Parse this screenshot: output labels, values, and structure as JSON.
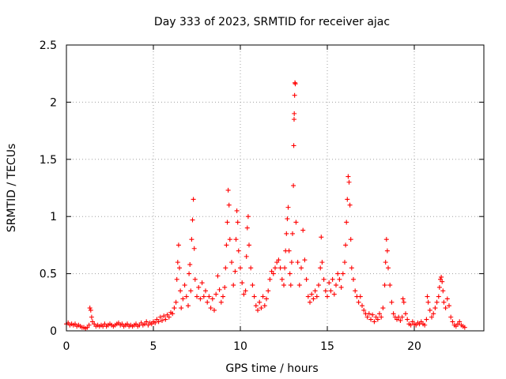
{
  "chart_data": {
    "type": "scatter",
    "title": "Day 333 of 2023, SRMTID for receiver ajac",
    "xlabel": "GPS time / hours",
    "ylabel": "SRMTID / TECUs",
    "xlim": [
      0,
      24
    ],
    "ylim": [
      0,
      2.5
    ],
    "xticks": [
      0,
      5,
      10,
      15,
      20
    ],
    "xtick_labels": [
      "0",
      "5",
      "10",
      "15",
      "20"
    ],
    "yticks": [
      0,
      0.5,
      1,
      1.5,
      2,
      2.5
    ],
    "ytick_labels": [
      "0",
      "0.5",
      "1",
      "1.5",
      "2",
      "2.5"
    ],
    "grid": true,
    "marker": "+",
    "color": "#ff0000",
    "series": [
      {
        "name": "SRMTID",
        "points": [
          [
            0.0,
            0.06
          ],
          [
            0.1,
            0.07
          ],
          [
            0.2,
            0.05
          ],
          [
            0.3,
            0.06
          ],
          [
            0.4,
            0.05
          ],
          [
            0.5,
            0.06
          ],
          [
            0.6,
            0.04
          ],
          [
            0.7,
            0.05
          ],
          [
            0.8,
            0.04
          ],
          [
            0.9,
            0.03
          ],
          [
            1.0,
            0.03
          ],
          [
            1.1,
            0.02
          ],
          [
            1.2,
            0.03
          ],
          [
            1.3,
            0.05
          ],
          [
            1.35,
            0.2
          ],
          [
            1.4,
            0.18
          ],
          [
            1.45,
            0.12
          ],
          [
            1.5,
            0.08
          ],
          [
            1.6,
            0.06
          ],
          [
            1.7,
            0.04
          ],
          [
            1.8,
            0.05
          ],
          [
            1.9,
            0.04
          ],
          [
            2.0,
            0.05
          ],
          [
            2.1,
            0.04
          ],
          [
            2.2,
            0.06
          ],
          [
            2.3,
            0.04
          ],
          [
            2.4,
            0.05
          ],
          [
            2.5,
            0.06
          ],
          [
            2.6,
            0.05
          ],
          [
            2.7,
            0.04
          ],
          [
            2.8,
            0.05
          ],
          [
            2.9,
            0.06
          ],
          [
            3.0,
            0.07
          ],
          [
            3.1,
            0.05
          ],
          [
            3.2,
            0.06
          ],
          [
            3.3,
            0.04
          ],
          [
            3.4,
            0.05
          ],
          [
            3.5,
            0.06
          ],
          [
            3.6,
            0.04
          ],
          [
            3.7,
            0.05
          ],
          [
            3.8,
            0.04
          ],
          [
            3.9,
            0.05
          ],
          [
            4.0,
            0.06
          ],
          [
            4.1,
            0.04
          ],
          [
            4.2,
            0.05
          ],
          [
            4.3,
            0.07
          ],
          [
            4.4,
            0.05
          ],
          [
            4.5,
            0.06
          ],
          [
            4.6,
            0.08
          ],
          [
            4.7,
            0.05
          ],
          [
            4.8,
            0.07
          ],
          [
            4.9,
            0.06
          ],
          [
            5.0,
            0.08
          ],
          [
            5.1,
            0.07
          ],
          [
            5.2,
            0.1
          ],
          [
            5.3,
            0.08
          ],
          [
            5.4,
            0.12
          ],
          [
            5.5,
            0.09
          ],
          [
            5.6,
            0.13
          ],
          [
            5.7,
            0.1
          ],
          [
            5.8,
            0.14
          ],
          [
            5.9,
            0.12
          ],
          [
            6.0,
            0.16
          ],
          [
            6.1,
            0.15
          ],
          [
            6.2,
            0.2
          ],
          [
            6.3,
            0.25
          ],
          [
            6.35,
            0.45
          ],
          [
            6.4,
            0.6
          ],
          [
            6.45,
            0.75
          ],
          [
            6.5,
            0.55
          ],
          [
            6.55,
            0.35
          ],
          [
            6.6,
            0.2
          ],
          [
            6.7,
            0.28
          ],
          [
            6.8,
            0.4
          ],
          [
            6.9,
            0.3
          ],
          [
            7.0,
            0.22
          ],
          [
            7.05,
            0.5
          ],
          [
            7.1,
            0.58
          ],
          [
            7.15,
            0.35
          ],
          [
            7.2,
            0.8
          ],
          [
            7.25,
            0.97
          ],
          [
            7.3,
            1.15
          ],
          [
            7.35,
            0.72
          ],
          [
            7.4,
            0.45
          ],
          [
            7.5,
            0.3
          ],
          [
            7.6,
            0.38
          ],
          [
            7.7,
            0.28
          ],
          [
            7.8,
            0.42
          ],
          [
            7.9,
            0.3
          ],
          [
            8.0,
            0.35
          ],
          [
            8.1,
            0.25
          ],
          [
            8.2,
            0.3
          ],
          [
            8.3,
            0.2
          ],
          [
            8.4,
            0.28
          ],
          [
            8.5,
            0.18
          ],
          [
            8.6,
            0.32
          ],
          [
            8.7,
            0.48
          ],
          [
            8.8,
            0.36
          ],
          [
            8.9,
            0.25
          ],
          [
            9.0,
            0.3
          ],
          [
            9.1,
            0.38
          ],
          [
            9.15,
            0.55
          ],
          [
            9.2,
            0.75
          ],
          [
            9.25,
            0.95
          ],
          [
            9.3,
            1.23
          ],
          [
            9.35,
            1.1
          ],
          [
            9.4,
            0.8
          ],
          [
            9.5,
            0.6
          ],
          [
            9.6,
            0.4
          ],
          [
            9.7,
            0.52
          ],
          [
            9.75,
            0.8
          ],
          [
            9.8,
            1.05
          ],
          [
            9.85,
            0.95
          ],
          [
            9.9,
            0.7
          ],
          [
            10.0,
            0.55
          ],
          [
            10.1,
            0.42
          ],
          [
            10.2,
            0.32
          ],
          [
            10.3,
            0.35
          ],
          [
            10.35,
            0.65
          ],
          [
            10.4,
            0.9
          ],
          [
            10.45,
            1.0
          ],
          [
            10.5,
            0.75
          ],
          [
            10.6,
            0.55
          ],
          [
            10.7,
            0.4
          ],
          [
            10.8,
            0.3
          ],
          [
            10.9,
            0.22
          ],
          [
            11.0,
            0.18
          ],
          [
            11.1,
            0.25
          ],
          [
            11.2,
            0.2
          ],
          [
            11.3,
            0.3
          ],
          [
            11.4,
            0.22
          ],
          [
            11.5,
            0.28
          ],
          [
            11.6,
            0.35
          ],
          [
            11.7,
            0.45
          ],
          [
            11.8,
            0.52
          ],
          [
            11.9,
            0.5
          ],
          [
            12.0,
            0.55
          ],
          [
            12.1,
            0.6
          ],
          [
            12.2,
            0.62
          ],
          [
            12.3,
            0.55
          ],
          [
            12.4,
            0.45
          ],
          [
            12.5,
            0.4
          ],
          [
            12.55,
            0.55
          ],
          [
            12.6,
            0.7
          ],
          [
            12.65,
            0.85
          ],
          [
            12.7,
            0.98
          ],
          [
            12.75,
            1.08
          ],
          [
            12.8,
            0.7
          ],
          [
            12.85,
            0.5
          ],
          [
            12.9,
            0.4
          ],
          [
            12.95,
            0.6
          ],
          [
            13.0,
            0.85
          ],
          [
            13.05,
            1.27
          ],
          [
            13.07,
            1.62
          ],
          [
            13.09,
            1.85
          ],
          [
            13.1,
            1.9
          ],
          [
            13.12,
            2.06
          ],
          [
            13.14,
            2.17
          ],
          [
            13.16,
            2.16
          ],
          [
            13.2,
            0.95
          ],
          [
            13.3,
            0.6
          ],
          [
            13.4,
            0.4
          ],
          [
            13.5,
            0.55
          ],
          [
            13.6,
            0.88
          ],
          [
            13.7,
            0.62
          ],
          [
            13.8,
            0.45
          ],
          [
            13.9,
            0.3
          ],
          [
            14.0,
            0.25
          ],
          [
            14.1,
            0.32
          ],
          [
            14.2,
            0.28
          ],
          [
            14.3,
            0.35
          ],
          [
            14.4,
            0.3
          ],
          [
            14.5,
            0.4
          ],
          [
            14.6,
            0.55
          ],
          [
            14.65,
            0.82
          ],
          [
            14.7,
            0.6
          ],
          [
            14.8,
            0.45
          ],
          [
            14.9,
            0.35
          ],
          [
            15.0,
            0.3
          ],
          [
            15.1,
            0.42
          ],
          [
            15.2,
            0.35
          ],
          [
            15.3,
            0.45
          ],
          [
            15.4,
            0.32
          ],
          [
            15.5,
            0.4
          ],
          [
            15.6,
            0.5
          ],
          [
            15.7,
            0.45
          ],
          [
            15.8,
            0.38
          ],
          [
            15.9,
            0.5
          ],
          [
            16.0,
            0.6
          ],
          [
            16.05,
            0.75
          ],
          [
            16.1,
            0.95
          ],
          [
            16.15,
            1.15
          ],
          [
            16.2,
            1.35
          ],
          [
            16.25,
            1.3
          ],
          [
            16.3,
            1.1
          ],
          [
            16.35,
            0.8
          ],
          [
            16.4,
            0.55
          ],
          [
            16.5,
            0.45
          ],
          [
            16.6,
            0.35
          ],
          [
            16.7,
            0.3
          ],
          [
            16.8,
            0.25
          ],
          [
            16.9,
            0.3
          ],
          [
            17.0,
            0.22
          ],
          [
            17.1,
            0.18
          ],
          [
            17.2,
            0.15
          ],
          [
            17.3,
            0.12
          ],
          [
            17.4,
            0.15
          ],
          [
            17.5,
            0.1
          ],
          [
            17.6,
            0.14
          ],
          [
            17.7,
            0.08
          ],
          [
            17.8,
            0.12
          ],
          [
            17.9,
            0.1
          ],
          [
            18.0,
            0.15
          ],
          [
            18.1,
            0.12
          ],
          [
            18.2,
            0.2
          ],
          [
            18.3,
            0.4
          ],
          [
            18.35,
            0.6
          ],
          [
            18.4,
            0.8
          ],
          [
            18.45,
            0.7
          ],
          [
            18.5,
            0.55
          ],
          [
            18.6,
            0.4
          ],
          [
            18.7,
            0.25
          ],
          [
            18.8,
            0.15
          ],
          [
            18.9,
            0.12
          ],
          [
            19.0,
            0.1
          ],
          [
            19.1,
            0.12
          ],
          [
            19.2,
            0.09
          ],
          [
            19.3,
            0.12
          ],
          [
            19.35,
            0.28
          ],
          [
            19.4,
            0.25
          ],
          [
            19.5,
            0.15
          ],
          [
            19.6,
            0.1
          ],
          [
            19.7,
            0.06
          ],
          [
            19.8,
            0.05
          ],
          [
            19.9,
            0.08
          ],
          [
            20.0,
            0.06
          ],
          [
            20.1,
            0.05
          ],
          [
            20.2,
            0.07
          ],
          [
            20.3,
            0.06
          ],
          [
            20.4,
            0.08
          ],
          [
            20.5,
            0.06
          ],
          [
            20.6,
            0.05
          ],
          [
            20.7,
            0.1
          ],
          [
            20.75,
            0.3
          ],
          [
            20.8,
            0.25
          ],
          [
            20.9,
            0.18
          ],
          [
            21.0,
            0.12
          ],
          [
            21.1,
            0.15
          ],
          [
            21.2,
            0.2
          ],
          [
            21.3,
            0.25
          ],
          [
            21.4,
            0.3
          ],
          [
            21.45,
            0.38
          ],
          [
            21.5,
            0.45
          ],
          [
            21.55,
            0.47
          ],
          [
            21.6,
            0.43
          ],
          [
            21.65,
            0.35
          ],
          [
            21.7,
            0.25
          ],
          [
            21.8,
            0.2
          ],
          [
            21.9,
            0.28
          ],
          [
            22.0,
            0.22
          ],
          [
            22.1,
            0.12
          ],
          [
            22.2,
            0.08
          ],
          [
            22.3,
            0.05
          ],
          [
            22.4,
            0.04
          ],
          [
            22.5,
            0.06
          ],
          [
            22.6,
            0.08
          ],
          [
            22.7,
            0.05
          ],
          [
            22.8,
            0.04
          ],
          [
            22.9,
            0.03
          ]
        ]
      }
    ]
  }
}
